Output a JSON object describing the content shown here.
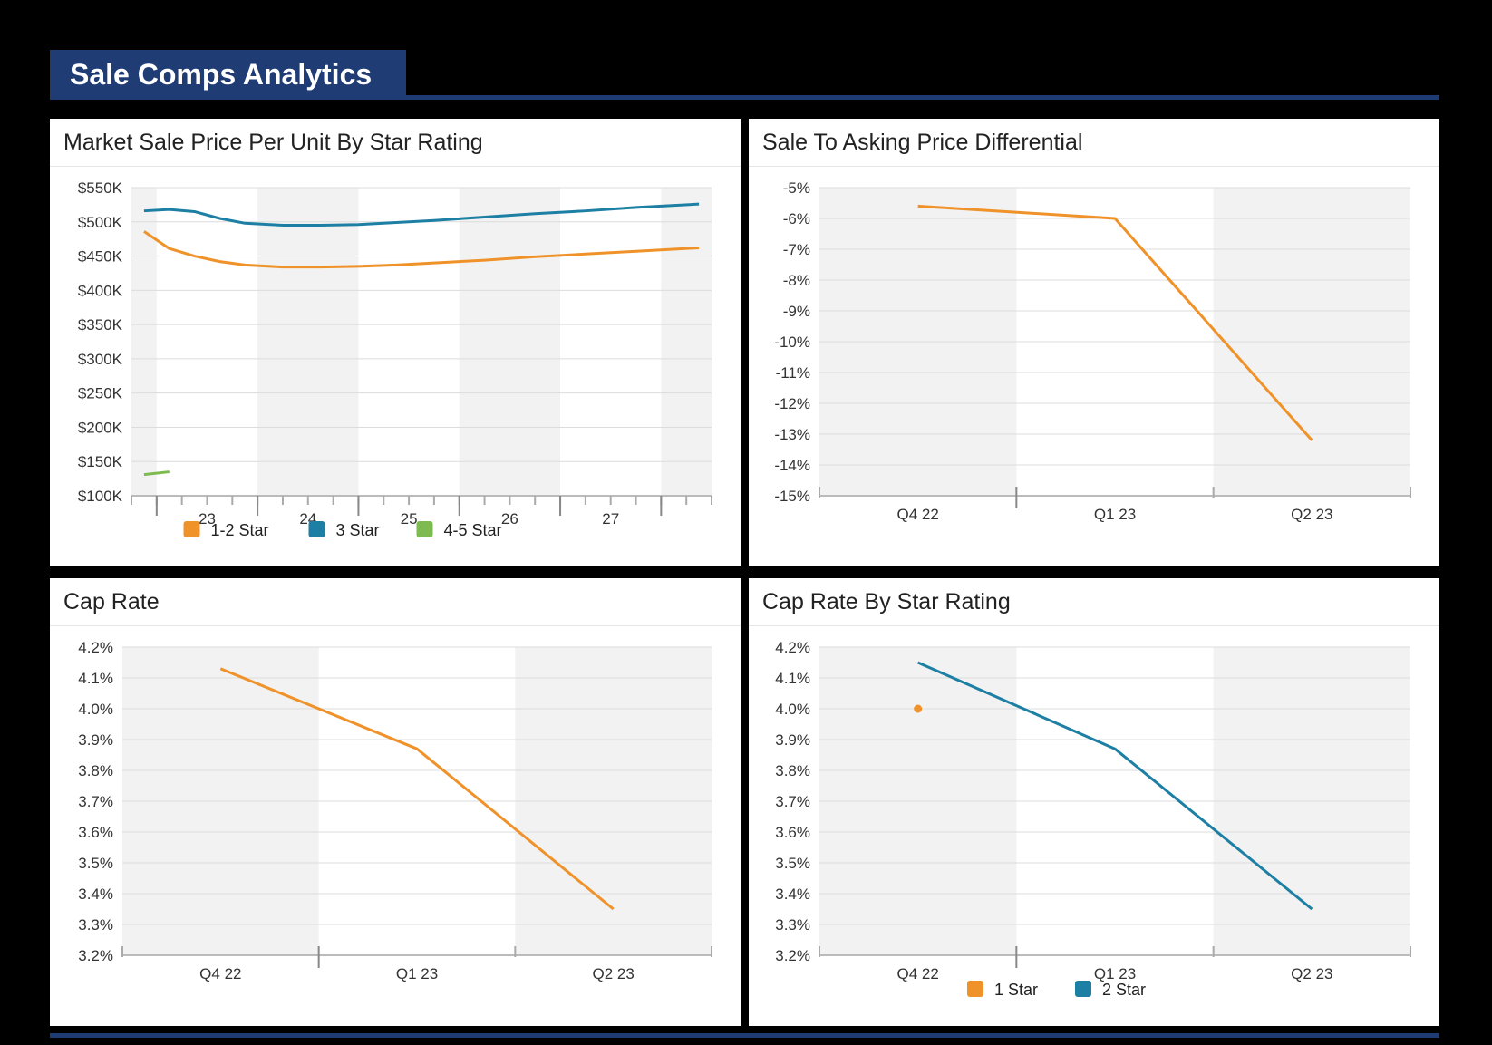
{
  "header": {
    "title": "Sale Comps Analytics"
  },
  "colors": {
    "orange": "#f0922a",
    "blue": "#1d7fa3",
    "green": "#7dbb50",
    "navy": "#203c75"
  },
  "chart_data": [
    {
      "id": "price",
      "type": "line",
      "title": "Market Sale Price Per Unit By Star Rating",
      "ylim": [
        100,
        550
      ],
      "y_ticks": [
        100,
        150,
        200,
        250,
        300,
        350,
        400,
        450,
        500,
        550
      ],
      "y_tick_labels": [
        "$100K",
        "$150K",
        "$200K",
        "$250K",
        "$300K",
        "$350K",
        "$400K",
        "$450K",
        "$500K",
        "$550K"
      ],
      "x_tick_labels": [
        "23",
        "24",
        "25",
        "26",
        "27"
      ],
      "xlim": [
        2022.0,
        2027.75
      ],
      "year_boundaries": [
        2022.25,
        2023.25,
        2024.25,
        2025.25,
        2026.25,
        2027.25
      ],
      "legend": [
        {
          "name": "1-2 Star",
          "color": "#f0922a"
        },
        {
          "name": "3 Star",
          "color": "#1d7fa3"
        },
        {
          "name": "4-5 Star",
          "color": "#7dbb50"
        }
      ],
      "series": [
        {
          "name": "1-2 Star",
          "color": "#f0922a",
          "x": [
            2022.125,
            2022.375,
            2022.625,
            2022.875,
            2023.125,
            2023.5,
            2023.875,
            2024.25,
            2024.625,
            2025.0,
            2025.5,
            2026.0,
            2026.5,
            2027.0,
            2027.625
          ],
          "values": [
            486,
            461,
            450,
            442,
            437,
            434,
            434,
            435,
            437,
            440,
            444,
            449,
            453,
            457,
            462
          ]
        },
        {
          "name": "3 Star",
          "color": "#1d7fa3",
          "x": [
            2022.125,
            2022.375,
            2022.625,
            2022.875,
            2023.125,
            2023.5,
            2023.875,
            2024.25,
            2024.625,
            2025.0,
            2025.5,
            2026.0,
            2026.5,
            2027.0,
            2027.625
          ],
          "values": [
            516,
            518,
            515,
            505,
            498,
            495,
            495,
            496,
            499,
            502,
            507,
            512,
            516,
            521,
            526
          ]
        },
        {
          "name": "4-5 Star",
          "color": "#7dbb50",
          "x": [
            2022.125,
            2022.375
          ],
          "values": [
            131,
            135
          ]
        }
      ]
    },
    {
      "id": "differential",
      "type": "line",
      "title": "Sale To Asking Price Differential",
      "ylim": [
        -15,
        -5
      ],
      "y_ticks": [
        -15,
        -14,
        -13,
        -12,
        -11,
        -10,
        -9,
        -8,
        -7,
        -6,
        -5
      ],
      "y_tick_labels": [
        "-15%",
        "-14%",
        "-13%",
        "-12%",
        "-11%",
        "-10%",
        "-9%",
        "-8%",
        "-7%",
        "-6%",
        "-5%"
      ],
      "categories": [
        "Q4 22",
        "Q1 23",
        "Q2 23"
      ],
      "series": [
        {
          "name": "Differential",
          "color": "#f0922a",
          "values": [
            -5.6,
            -6.0,
            -13.2
          ]
        }
      ]
    },
    {
      "id": "caprate",
      "type": "line",
      "title": "Cap Rate",
      "ylim": [
        3.2,
        4.2
      ],
      "y_ticks": [
        3.2,
        3.3,
        3.4,
        3.5,
        3.6,
        3.7,
        3.8,
        3.9,
        4.0,
        4.1,
        4.2
      ],
      "y_tick_labels": [
        "3.2%",
        "3.3%",
        "3.4%",
        "3.5%",
        "3.6%",
        "3.7%",
        "3.8%",
        "3.9%",
        "4.0%",
        "4.1%",
        "4.2%"
      ],
      "categories": [
        "Q4 22",
        "Q1 23",
        "Q2 23"
      ],
      "series": [
        {
          "name": "Cap Rate",
          "color": "#f0922a",
          "values": [
            4.13,
            3.87,
            3.35
          ]
        }
      ]
    },
    {
      "id": "caprate_star",
      "type": "line",
      "title": "Cap Rate By Star Rating",
      "ylim": [
        3.2,
        4.2
      ],
      "y_ticks": [
        3.2,
        3.3,
        3.4,
        3.5,
        3.6,
        3.7,
        3.8,
        3.9,
        4.0,
        4.1,
        4.2
      ],
      "y_tick_labels": [
        "3.2%",
        "3.3%",
        "3.4%",
        "3.5%",
        "3.6%",
        "3.7%",
        "3.8%",
        "3.9%",
        "4.0%",
        "4.1%",
        "4.2%"
      ],
      "categories": [
        "Q4 22",
        "Q1 23",
        "Q2 23"
      ],
      "legend": [
        {
          "name": "1 Star",
          "color": "#f0922a"
        },
        {
          "name": "2 Star",
          "color": "#1d7fa3"
        }
      ],
      "series": [
        {
          "name": "1 Star",
          "color": "#f0922a",
          "values": [
            4.0,
            null,
            null
          ]
        },
        {
          "name": "2 Star",
          "color": "#1d7fa3",
          "values": [
            4.15,
            3.87,
            3.35
          ]
        }
      ]
    }
  ]
}
